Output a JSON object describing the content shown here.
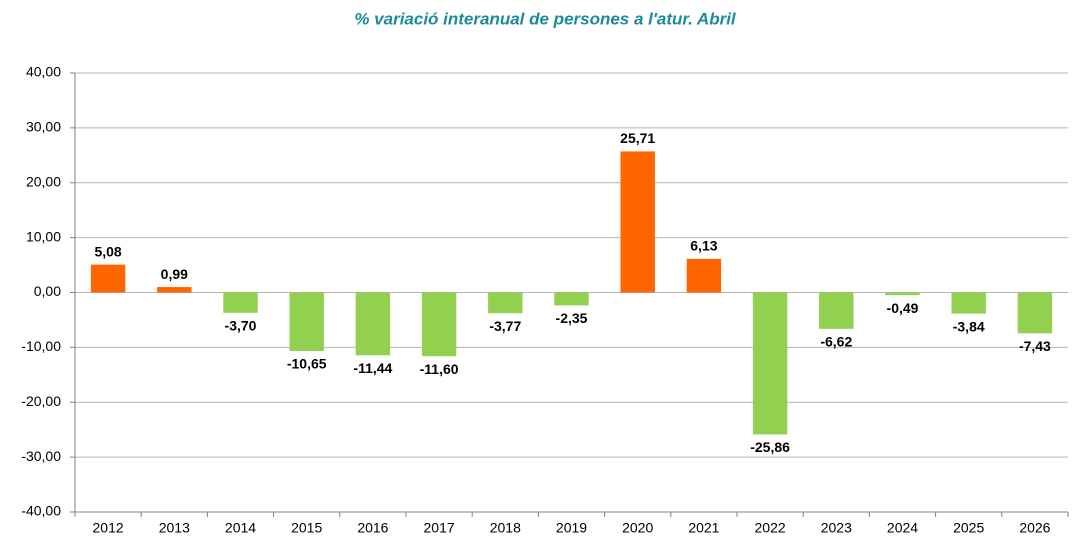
{
  "chart_data": {
    "type": "bar",
    "title": "% variació interanual de persones a l'atur. Abril",
    "categories": [
      "2012",
      "2013",
      "2014",
      "2015",
      "2016",
      "2017",
      "2018",
      "2019",
      "2020",
      "2021",
      "2022",
      "2023",
      "2024",
      "2025",
      "2026"
    ],
    "values": [
      5.08,
      0.99,
      -3.7,
      -10.65,
      -11.44,
      -11.6,
      -3.77,
      -2.35,
      25.71,
      6.13,
      -25.86,
      -6.62,
      -0.49,
      -3.84,
      -7.43
    ],
    "value_labels": [
      "5,08",
      "0,99",
      "-3,70",
      "-10,65",
      "-11,44",
      "-11,60",
      "-3,77",
      "-2,35",
      "25,71",
      "6,13",
      "-25,86",
      "-6,62",
      "-0,49",
      "-3,84",
      "-7,43"
    ],
    "colors": [
      "#ff6600",
      "#ff6600",
      "#92d050",
      "#92d050",
      "#92d050",
      "#92d050",
      "#92d050",
      "#92d050",
      "#ff6600",
      "#ff6600",
      "#92d050",
      "#92d050",
      "#92d050",
      "#92d050",
      "#92d050"
    ],
    "ylim": [
      -40,
      40
    ],
    "yticks": [
      {
        "value": -40,
        "label": "-40,00"
      },
      {
        "value": -30,
        "label": "-30,00"
      },
      {
        "value": -20,
        "label": "-20,00"
      },
      {
        "value": -10,
        "label": "-10,00"
      },
      {
        "value": 0,
        "label": "0,00"
      },
      {
        "value": 10,
        "label": "10,00"
      },
      {
        "value": 20,
        "label": "20,00"
      },
      {
        "value": 30,
        "label": "30,00"
      },
      {
        "value": 40,
        "label": "40,00"
      }
    ],
    "grid": true
  }
}
